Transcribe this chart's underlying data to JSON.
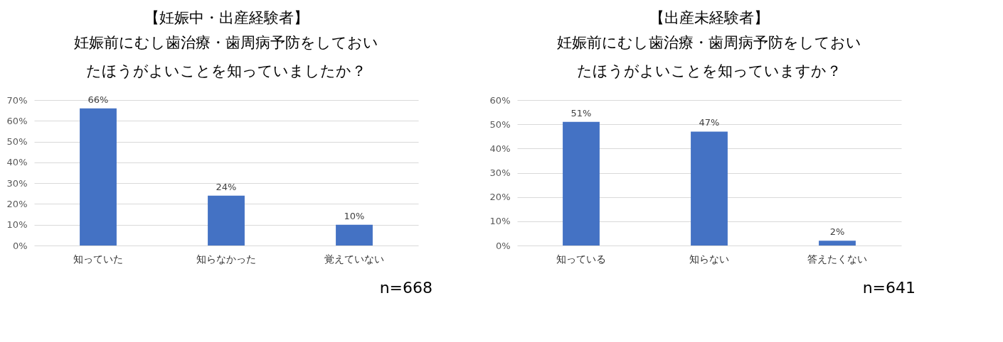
{
  "chart_data": [
    {
      "type": "bar",
      "title": "【妊娠中・出産経験者】",
      "subtitle": "妊娠前にむし歯治療・歯周病予防をしておいたほうがよいことを知っていましたか？",
      "categories": [
        "知っていた",
        "知らなかった",
        "覚えていない"
      ],
      "values": [
        66,
        24,
        10
      ],
      "value_labels": [
        "66%",
        "24%",
        "10%"
      ],
      "color": "#4472c4",
      "ylim": [
        0,
        70
      ],
      "yticks": [
        {
          "value": 0,
          "label": "0%"
        },
        {
          "value": 10,
          "label": "10%"
        },
        {
          "value": 20,
          "label": "20%"
        },
        {
          "value": 30,
          "label": "30%"
        },
        {
          "value": 40,
          "label": "40%"
        },
        {
          "value": 50,
          "label": "50%"
        },
        {
          "value": 60,
          "label": "60%"
        },
        {
          "value": 70,
          "label": "70%"
        }
      ],
      "grid": "y",
      "annotations": [
        "n=668"
      ]
    },
    {
      "type": "bar",
      "title": "【出産未経験者】",
      "subtitle": "妊娠前にむし歯治療・歯周病予防をしておいたほうがよいことを知っていますか？",
      "categories": [
        "知っている",
        "知らない",
        "答えたくない"
      ],
      "values": [
        51,
        47,
        2
      ],
      "value_labels": [
        "51%",
        "47%",
        "2%"
      ],
      "color": "#4472c4",
      "ylim": [
        0,
        60
      ],
      "yticks": [
        {
          "value": 0,
          "label": "0%"
        },
        {
          "value": 10,
          "label": "10%"
        },
        {
          "value": 20,
          "label": "20%"
        },
        {
          "value": 30,
          "label": "30%"
        },
        {
          "value": 40,
          "label": "40%"
        },
        {
          "value": 50,
          "label": "50%"
        },
        {
          "value": 60,
          "label": "60%"
        }
      ],
      "grid": "y",
      "annotations": [
        "n=641"
      ]
    }
  ]
}
